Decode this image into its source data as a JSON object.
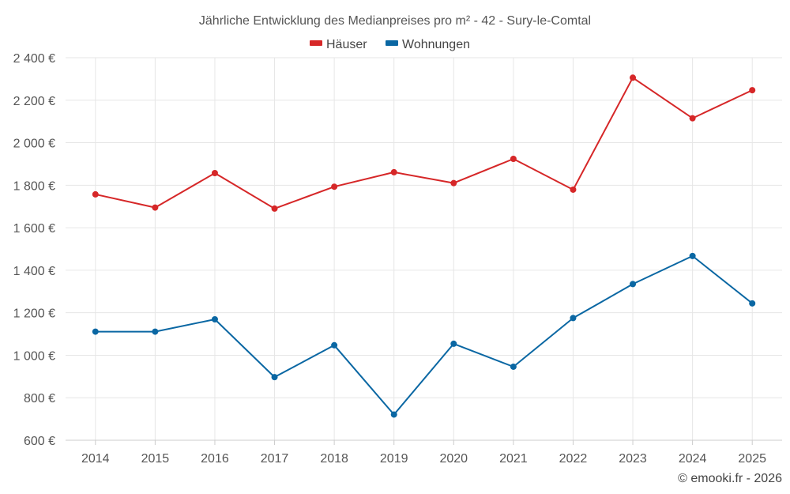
{
  "chart_data": {
    "type": "line",
    "title": "Jährliche Entwicklung des Medianpreises pro m² - 42 - Sury-le-Comtal",
    "categories": [
      "2014",
      "2015",
      "2016",
      "2017",
      "2018",
      "2019",
      "2020",
      "2021",
      "2022",
      "2023",
      "2024",
      "2025"
    ],
    "series": [
      {
        "name": "Häuser",
        "color": "#d62728",
        "values": [
          1757,
          1695,
          1857,
          1690,
          1793,
          1861,
          1810,
          1924,
          1779,
          2306,
          2115,
          2247
        ]
      },
      {
        "name": "Wohnungen",
        "color": "#0a67a3",
        "values": [
          1111,
          1111,
          1169,
          897,
          1047,
          721,
          1054,
          946,
          1175,
          1335,
          1467,
          1244
        ]
      }
    ],
    "ylim": [
      600,
      2400
    ],
    "yticks": [
      600,
      800,
      1000,
      1200,
      1400,
      1600,
      1800,
      2000,
      2200,
      2400
    ],
    "ytick_labels": [
      "600 €",
      "800 €",
      "1 000 €",
      "1 200 €",
      "1 400 €",
      "1 600 €",
      "1 800 €",
      "2 000 €",
      "2 200 €",
      "2 400 €"
    ],
    "xlabel": "",
    "ylabel": "",
    "legend_position": "top-center",
    "grid": true
  },
  "credit": "© emooki.fr - 2026"
}
